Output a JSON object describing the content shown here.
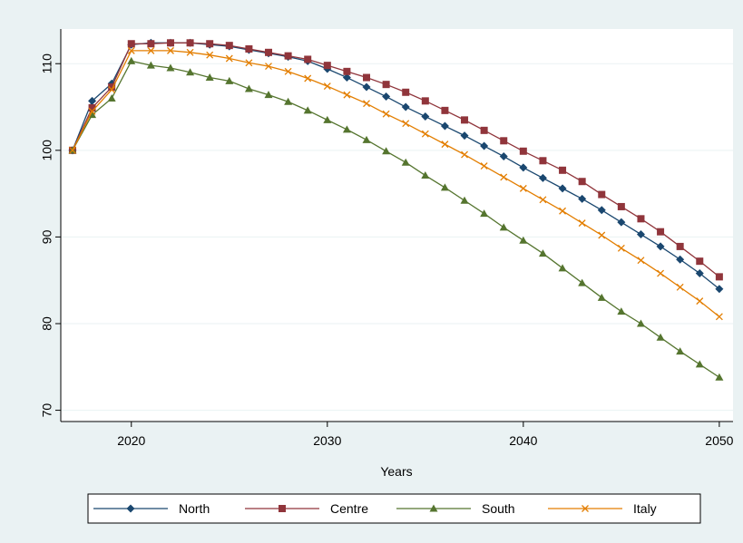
{
  "chart_data": {
    "type": "line",
    "x_label": "Years",
    "x": [
      2017,
      2018,
      2019,
      2020,
      2021,
      2022,
      2023,
      2024,
      2025,
      2026,
      2027,
      2028,
      2029,
      2030,
      2031,
      2032,
      2033,
      2034,
      2035,
      2036,
      2037,
      2038,
      2039,
      2040,
      2041,
      2042,
      2043,
      2044,
      2045,
      2046,
      2047,
      2048,
      2049,
      2050
    ],
    "series": [
      {
        "name": "North",
        "color": "#1a476f",
        "marker": "diamond",
        "values": [
          100,
          105.7,
          107.7,
          112.2,
          112.4,
          112.4,
          112.4,
          112.2,
          112.0,
          111.6,
          111.2,
          110.8,
          110.3,
          109.4,
          108.4,
          107.3,
          106.2,
          105.0,
          103.9,
          102.8,
          101.7,
          100.5,
          99.3,
          98.0,
          96.8,
          95.6,
          94.4,
          93.1,
          91.7,
          90.3,
          88.9,
          87.4,
          85.8,
          84.0
        ]
      },
      {
        "name": "Centre",
        "color": "#90353b",
        "marker": "square",
        "values": [
          100,
          104.9,
          107.3,
          112.3,
          112.3,
          112.4,
          112.4,
          112.3,
          112.1,
          111.7,
          111.3,
          110.9,
          110.5,
          109.8,
          109.1,
          108.4,
          107.6,
          106.7,
          105.7,
          104.6,
          103.5,
          102.3,
          101.1,
          99.9,
          98.8,
          97.7,
          96.4,
          94.9,
          93.5,
          92.1,
          90.6,
          88.9,
          87.2,
          85.4
        ]
      },
      {
        "name": "South",
        "color": "#55752f",
        "marker": "triangle",
        "values": [
          100,
          104.1,
          106.0,
          110.3,
          109.8,
          109.5,
          109.0,
          108.4,
          108.0,
          107.1,
          106.4,
          105.6,
          104.6,
          103.5,
          102.4,
          101.2,
          99.9,
          98.6,
          97.1,
          95.7,
          94.2,
          92.7,
          91.1,
          89.6,
          88.1,
          86.4,
          84.7,
          83.0,
          81.4,
          80.0,
          78.4,
          76.8,
          75.3,
          73.8
        ]
      },
      {
        "name": "Italy",
        "color": "#e37e00",
        "marker": "x",
        "values": [
          100,
          104.5,
          107.0,
          111.5,
          111.5,
          111.5,
          111.3,
          111.0,
          110.6,
          110.1,
          109.7,
          109.1,
          108.3,
          107.4,
          106.4,
          105.4,
          104.2,
          103.1,
          101.9,
          100.7,
          99.5,
          98.2,
          96.9,
          95.6,
          94.3,
          93.0,
          91.6,
          90.2,
          88.7,
          87.3,
          85.8,
          84.2,
          82.6,
          80.8
        ]
      }
    ],
    "xlim": [
      2016.4,
      2050.7
    ],
    "xticks": [
      2020,
      2030,
      2040,
      2050
    ],
    "ylim": [
      68.7,
      114
    ],
    "yticks": [
      70,
      80,
      90,
      100,
      110
    ],
    "grid": true,
    "legend": "bottom"
  }
}
